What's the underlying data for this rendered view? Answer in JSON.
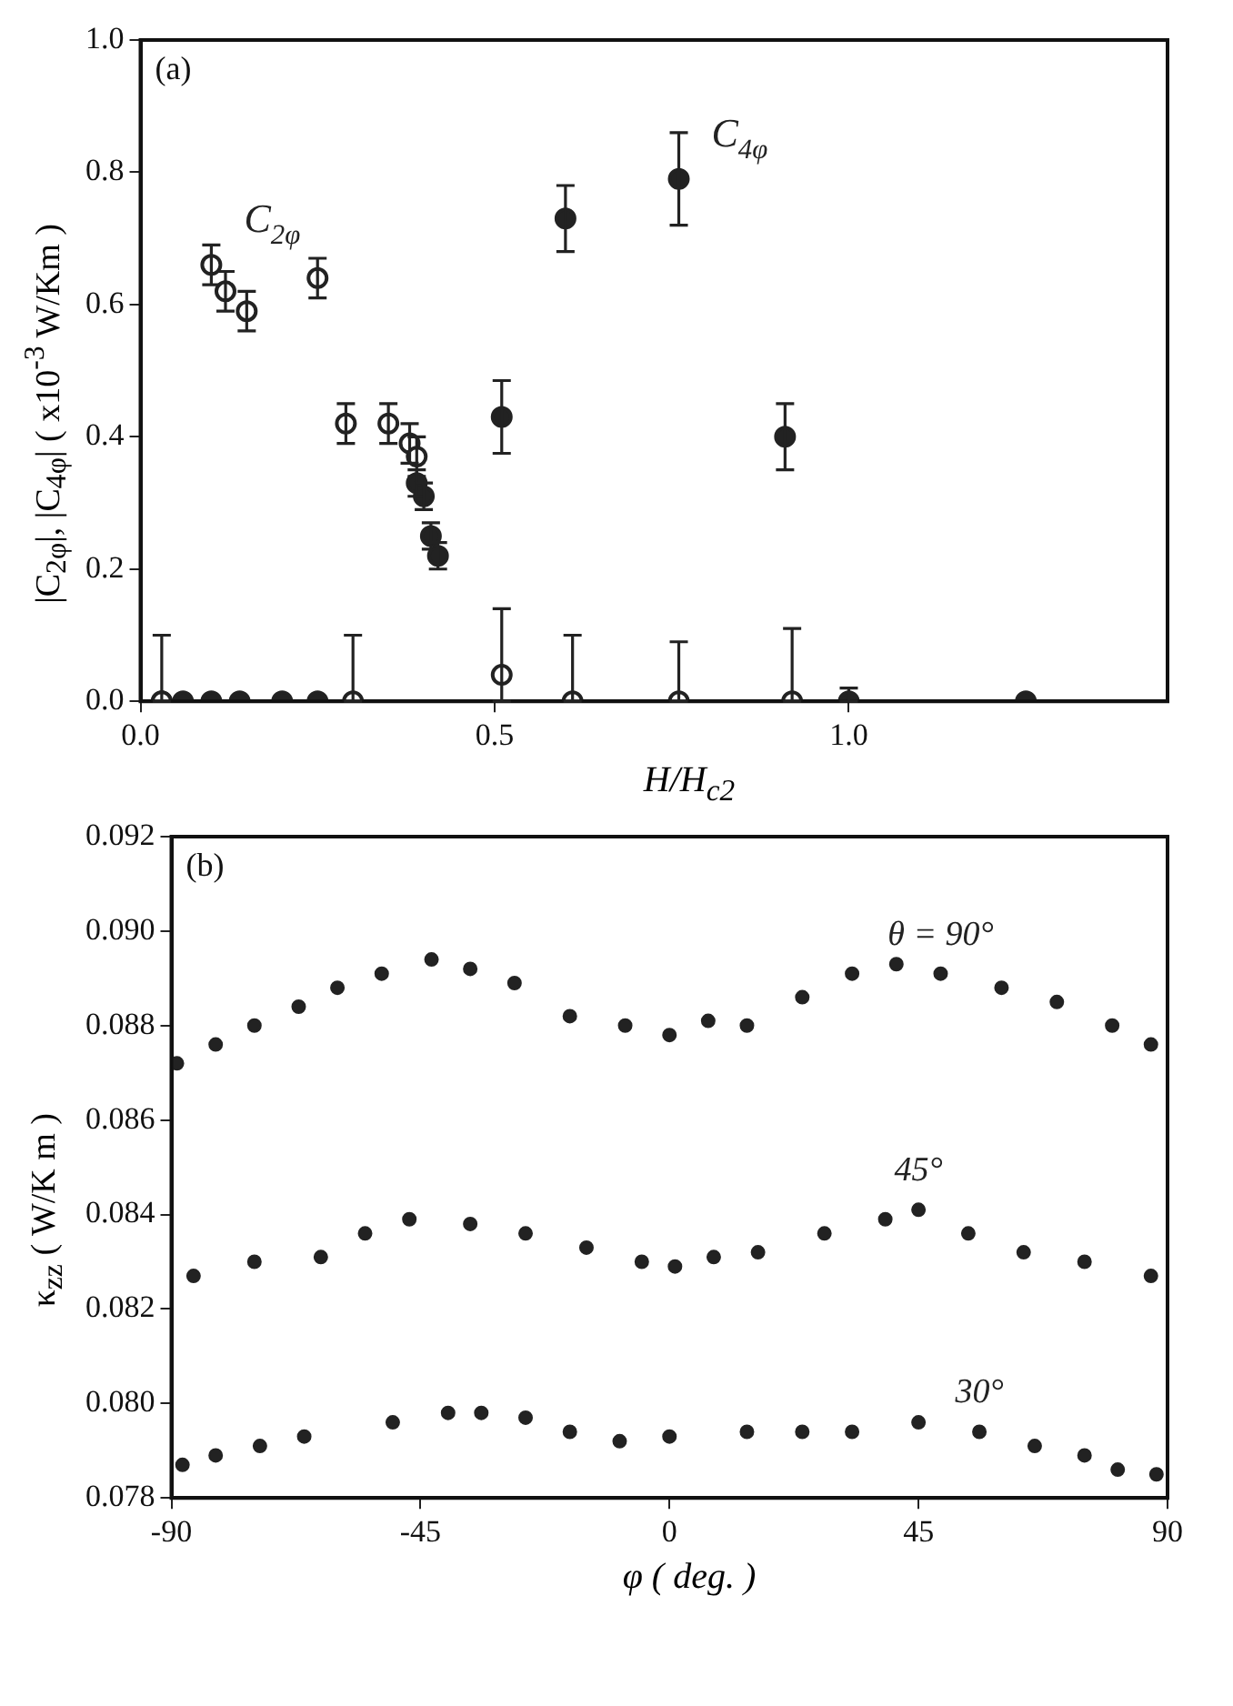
{
  "chart_data": [
    {
      "type": "scatter",
      "xlabel": "H/H$_{c2}$",
      "ylabel": "|C$_{2φ}$|, |C$_{4φ}$| ( x10$^{-3}$ W/Km )",
      "annotations": [
        "(a)"
      ],
      "marker": "circle",
      "xlim": [
        0,
        1.45
      ],
      "ylim": [
        0,
        1.0
      ],
      "xticks": [
        {
          "value": 0,
          "label": "0.0"
        },
        0.5,
        {
          "value": 1,
          "label": "1.0"
        }
      ],
      "yticks": [
        {
          "value": 0,
          "label": "0.0"
        },
        0.2,
        0.4,
        0.6,
        0.8,
        {
          "value": 1,
          "label": "1.0"
        }
      ],
      "series": [
        {
          "name": "C$_{2φ}$",
          "color": "#222222",
          "x": [
            0.03,
            0.1,
            0.12,
            0.15,
            0.25,
            0.29,
            0.3,
            0.35,
            0.38,
            0.39,
            0.51,
            0.61,
            0.76,
            0.92
          ],
          "values": [
            0,
            0.66,
            0.62,
            0.59,
            0.64,
            0.42,
            0,
            0.42,
            0.39,
            0.37,
            0.04,
            0,
            0,
            0
          ],
          "errors": [
            [
              0,
              0.1
            ],
            0.03,
            0.03,
            0.03,
            0.03,
            0.03,
            [
              0,
              0.1
            ],
            0.03,
            0.03,
            0.03,
            [
              0,
              0.14
            ],
            [
              0,
              0.1
            ],
            [
              0,
              0.09
            ],
            [
              0,
              0.11
            ]
          ]
        },
        {
          "name": "C$_{4φ}$",
          "color": "#222222",
          "x": [
            0.03,
            0.06,
            0.1,
            0.14,
            0.2,
            0.25,
            0.39,
            0.4,
            0.41,
            0.42,
            0.51,
            0.6,
            0.76,
            0.91,
            1.0,
            1.25
          ],
          "values": [
            0,
            0,
            0,
            0,
            0,
            0,
            0.33,
            0.31,
            0.25,
            0.22,
            0.43,
            0.73,
            0.79,
            0.4,
            0,
            0
          ],
          "errors": [
            null,
            null,
            null,
            null,
            null,
            null,
            0.02,
            0.02,
            0.02,
            0.02,
            0.055,
            0.05,
            0.07,
            0.05,
            [
              0,
              0.02
            ],
            null
          ]
        }
      ]
    },
    {
      "type": "scatter",
      "xlabel": "φ ( deg. )",
      "ylabel": "κ$_{zz}$ ( W/K m )",
      "annotations": [
        "(b)"
      ],
      "marker": "circle",
      "xlim": [
        -90,
        90
      ],
      "ylim": [
        0.078,
        0.092
      ],
      "xticks": [
        -90,
        -45,
        0,
        45,
        90
      ],
      "yticks": [
        0.078,
        {
          "value": 0.08,
          "label": "0.080"
        },
        0.082,
        0.084,
        0.086,
        0.088,
        {
          "value": 0.09,
          "label": "0.090"
        },
        0.092
      ],
      "series": [
        {
          "name": "θ = 90°",
          "color": "#222222",
          "x": [
            -89,
            -82,
            -75,
            -67,
            -60,
            -52,
            -43,
            -36,
            -28,
            -18,
            -8,
            0,
            7,
            14,
            24,
            33,
            41,
            49,
            60,
            70,
            80,
            87
          ],
          "values": [
            0.0872,
            0.0876,
            0.088,
            0.0884,
            0.0888,
            0.0891,
            0.0894,
            0.0892,
            0.0889,
            0.0882,
            0.088,
            0.0878,
            0.0881,
            0.088,
            0.0886,
            0.0891,
            0.0893,
            0.0891,
            0.0888,
            0.0885,
            0.088,
            0.0876
          ]
        },
        {
          "name": "45°",
          "color": "#222222",
          "x": [
            -86,
            -75,
            -63,
            -55,
            -47,
            -36,
            -26,
            -15,
            -5,
            1,
            8,
            16,
            28,
            39,
            45,
            54,
            64,
            75,
            87
          ],
          "values": [
            0.0827,
            0.083,
            0.0831,
            0.0836,
            0.0839,
            0.0838,
            0.0836,
            0.0833,
            0.083,
            0.0829,
            0.0831,
            0.0832,
            0.0836,
            0.0839,
            0.0841,
            0.0836,
            0.0832,
            0.083,
            0.0827
          ]
        },
        {
          "name": "30°",
          "color": "#222222",
          "x": [
            -88,
            -82,
            -74,
            -66,
            -50,
            -40,
            -34,
            -26,
            -18,
            -9,
            0,
            14,
            24,
            33,
            45,
            56,
            66,
            75,
            81,
            88
          ],
          "values": [
            0.0787,
            0.0789,
            0.0791,
            0.0793,
            0.0796,
            0.0798,
            0.0798,
            0.0797,
            0.0794,
            0.0792,
            0.0793,
            0.0794,
            0.0794,
            0.0794,
            0.0796,
            0.0794,
            0.0791,
            0.0789,
            0.0786,
            0.0785
          ]
        }
      ]
    }
  ]
}
